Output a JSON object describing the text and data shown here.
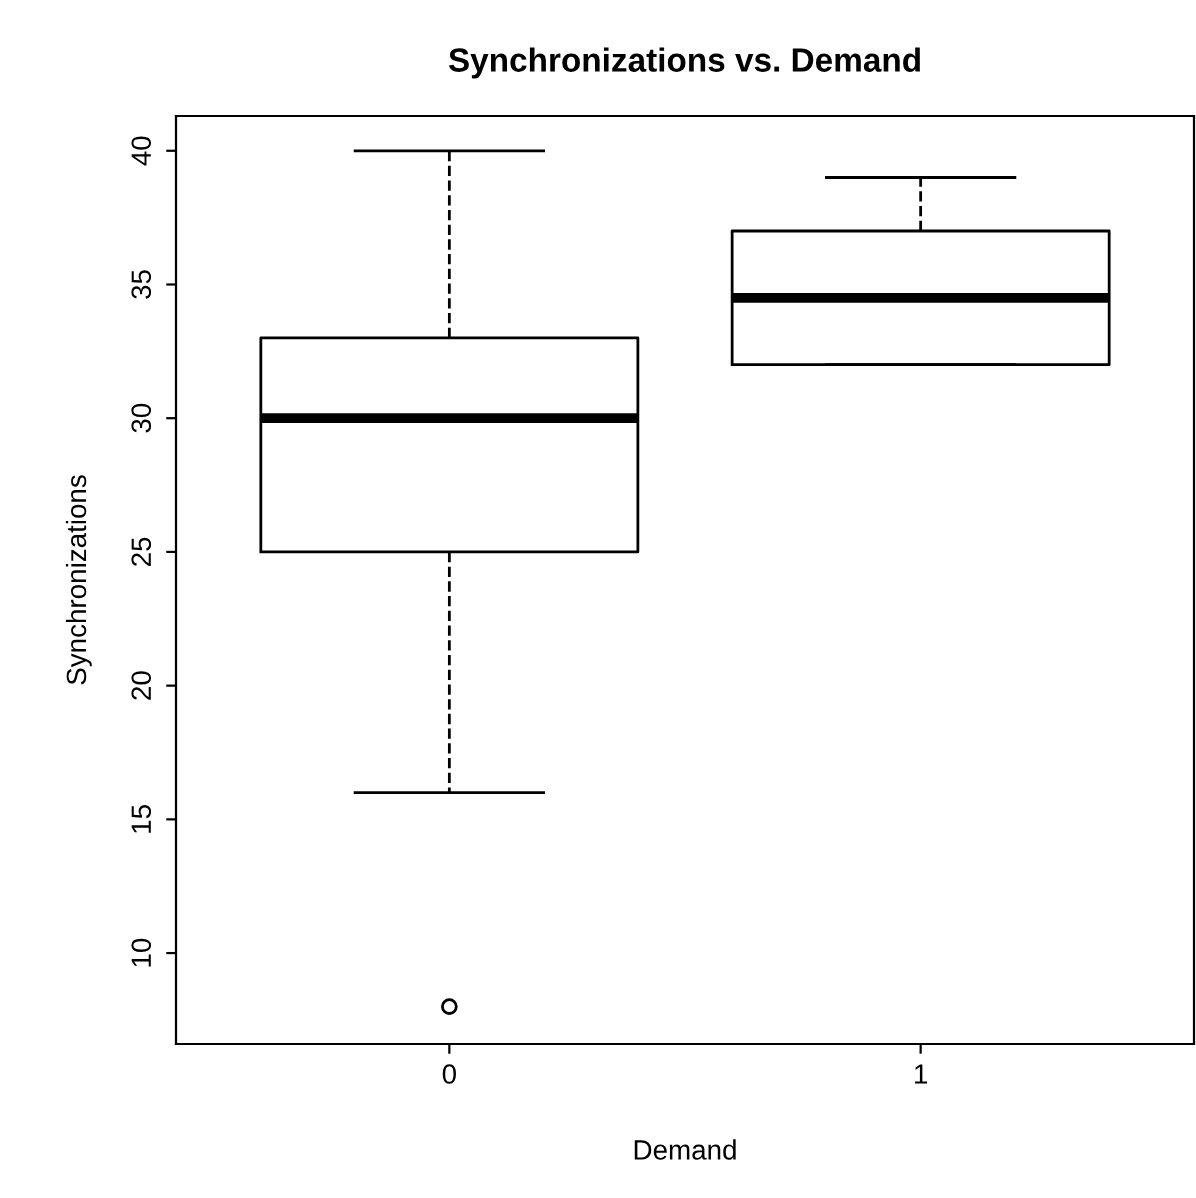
{
  "chart_data": {
    "type": "box",
    "title": "Synchronizations vs. Demand",
    "xlabel": "Demand",
    "ylabel": "Synchronizations",
    "categories": [
      "0",
      "1"
    ],
    "boxes": [
      {
        "low": 16,
        "q1": 25,
        "median": 30,
        "q3": 33,
        "high": 40,
        "outliers": [
          8
        ]
      },
      {
        "low": 32,
        "q1": 32,
        "median": 34.5,
        "q3": 37,
        "high": 39
      }
    ],
    "ylim": [
      6.6,
      41.3
    ],
    "yticks": [
      10,
      15,
      20,
      25,
      30,
      35,
      40
    ],
    "grid": false,
    "legend": false
  }
}
